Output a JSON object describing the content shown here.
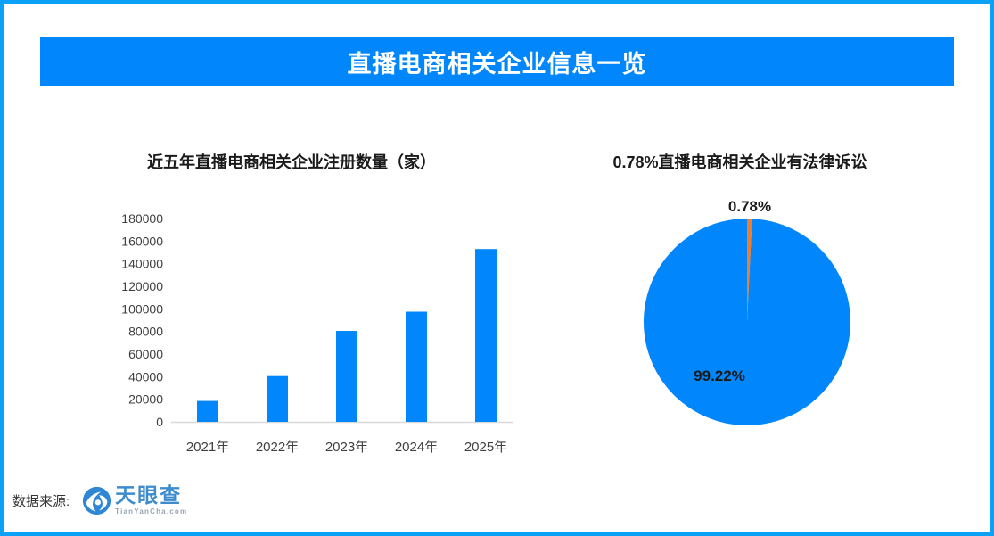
{
  "page": {
    "border_color": "#0AA1F6",
    "background_color": "#FFFFFF"
  },
  "header": {
    "title": "直播电商相关企业信息一览",
    "bg_color": "#0187FB",
    "text_color": "#FFFFFF"
  },
  "chart_data": [
    {
      "type": "bar",
      "title": "近五年直播电商相关企业注册数量（家）",
      "categories": [
        "2021年",
        "2022年",
        "2023年",
        "2024年",
        "2025年"
      ],
      "values": [
        18500,
        40500,
        80500,
        97500,
        153000
      ],
      "xlabel": "",
      "ylabel": "",
      "ylim": [
        0,
        180000
      ],
      "yticks": [
        0,
        20000,
        40000,
        60000,
        80000,
        100000,
        120000,
        140000,
        160000,
        180000
      ],
      "grid": false,
      "legend": false,
      "bar_color": "#0187FB",
      "axis_line_color": "#D9D9D9",
      "tick_label_color": "#404040",
      "title_color": "#1A1A1A"
    },
    {
      "type": "pie",
      "title": "0.78%直播电商相关企业有法律诉讼",
      "slices": [
        {
          "label": "0.78%",
          "value": 0.78,
          "color": "#ED7D31",
          "name": "has-litigation"
        },
        {
          "label": "99.22%",
          "value": 99.22,
          "color": "#0187FB",
          "name": "no-litigation"
        }
      ],
      "start_angle_deg": 0,
      "direction": "clockwise",
      "legend": false,
      "label_color": "#1A1A1A",
      "title_color": "#1A1A1A"
    }
  ],
  "footer": {
    "source_label": "数据来源:",
    "logo_name": "天眼查",
    "logo_domain": "TianYanCha.com",
    "logo_color": "#3E8CCB",
    "logo_domain_color": "#97A5B3"
  }
}
